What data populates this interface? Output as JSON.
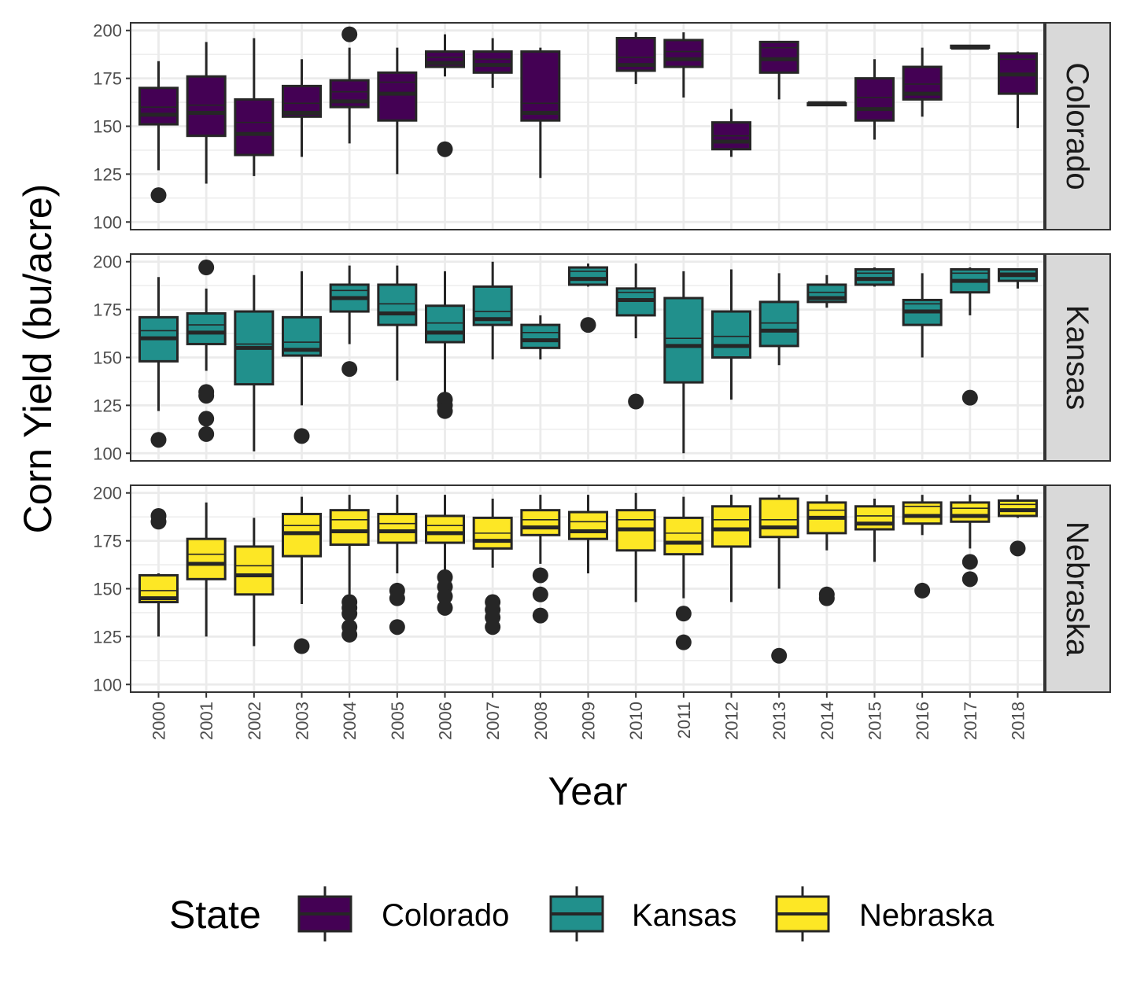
{
  "chart_data": {
    "type": "boxplot",
    "facet_by": "State",
    "xlabel": "Year",
    "ylabel": "Corn Yield (bu/acre)",
    "years": [
      "2000",
      "2001",
      "2002",
      "2003",
      "2004",
      "2005",
      "2006",
      "2007",
      "2008",
      "2009",
      "2010",
      "2011",
      "2012",
      "2013",
      "2014",
      "2015",
      "2016",
      "2017",
      "2018"
    ],
    "y_ticks": [
      100,
      125,
      150,
      175,
      200
    ],
    "ylim": [
      96,
      204
    ],
    "legend": {
      "title": "State",
      "position": "bottom"
    },
    "grid": true,
    "facets": [
      {
        "name": "Colorado",
        "color": "#440154",
        "boxes": [
          {
            "year": "2000",
            "whisker_low": 127,
            "q1": 151,
            "median": 156,
            "q3": 170,
            "whisker_high": 184,
            "outliers": [
              114
            ],
            "inner_line": 160
          },
          {
            "year": "2001",
            "whisker_low": 120,
            "q1": 145,
            "median": 157,
            "q3": 176,
            "whisker_high": 194,
            "outliers": [],
            "inner_line": 161
          },
          {
            "year": "2002",
            "whisker_low": 124,
            "q1": 135,
            "median": 146,
            "q3": 164,
            "whisker_high": 196,
            "outliers": [],
            "inner_line": 152
          },
          {
            "year": "2003",
            "whisker_low": 134,
            "q1": 155,
            "median": 157,
            "q3": 171,
            "whisker_high": 185,
            "outliers": [],
            "inner_line": 162
          },
          {
            "year": "2004",
            "whisker_low": 141,
            "q1": 160,
            "median": 163,
            "q3": 174,
            "whisker_high": 191,
            "outliers": [
              198
            ],
            "inner_line": 168
          },
          {
            "year": "2005",
            "whisker_low": 125,
            "q1": 153,
            "median": 167,
            "q3": 178,
            "whisker_high": 191,
            "outliers": [],
            "inner_line": 173
          },
          {
            "year": "2006",
            "whisker_low": 176,
            "q1": 181,
            "median": 183,
            "q3": 189,
            "whisker_high": 198,
            "outliers": [
              138
            ],
            "inner_line": 186
          },
          {
            "year": "2007",
            "whisker_low": 170,
            "q1": 178,
            "median": 182,
            "q3": 189,
            "whisker_high": 196,
            "outliers": [],
            "inner_line": 185
          },
          {
            "year": "2008",
            "whisker_low": 123,
            "q1": 153,
            "median": 157,
            "q3": 189,
            "whisker_high": 191,
            "outliers": [],
            "inner_line": 162
          },
          {
            "year": "2010",
            "whisker_low": 172,
            "q1": 179,
            "median": 182,
            "q3": 196,
            "whisker_high": 199,
            "outliers": [],
            "inner_line": 186
          },
          {
            "year": "2011",
            "whisker_low": 165,
            "q1": 181,
            "median": 185,
            "q3": 195,
            "whisker_high": 199,
            "outliers": [],
            "inner_line": 189
          },
          {
            "year": "2012",
            "whisker_low": 134,
            "q1": 138,
            "median": 142,
            "q3": 152,
            "whisker_high": 159,
            "outliers": [],
            "inner_line": 145
          },
          {
            "year": "2013",
            "whisker_low": 164,
            "q1": 178,
            "median": 185,
            "q3": 194,
            "whisker_high": 194,
            "outliers": [],
            "inner_line": 191
          },
          {
            "year": "2014",
            "whisker_low": 161,
            "q1": 161,
            "median": 162,
            "q3": 162,
            "whisker_high": 162,
            "outliers": [],
            "inner_line": null
          },
          {
            "year": "2015",
            "whisker_low": 143,
            "q1": 153,
            "median": 159,
            "q3": 175,
            "whisker_high": 185,
            "outliers": [],
            "inner_line": 165
          },
          {
            "year": "2016",
            "whisker_low": 155,
            "q1": 164,
            "median": 167,
            "q3": 181,
            "whisker_high": 191,
            "outliers": [],
            "inner_line": 172
          },
          {
            "year": "2017",
            "whisker_low": 191,
            "q1": 191,
            "median": 191,
            "q3": 192,
            "whisker_high": 192,
            "outliers": [],
            "inner_line": null
          },
          {
            "year": "2018",
            "whisker_low": 149,
            "q1": 167,
            "median": 177,
            "q3": 188,
            "whisker_high": 189,
            "outliers": [],
            "inner_line": 185
          }
        ]
      },
      {
        "name": "Kansas",
        "color": "#21908C",
        "boxes": [
          {
            "year": "2000",
            "whisker_low": 122,
            "q1": 148,
            "median": 160,
            "q3": 171,
            "whisker_high": 192,
            "outliers": [
              107
            ],
            "inner_line": 164
          },
          {
            "year": "2001",
            "whisker_low": 143,
            "q1": 157,
            "median": 163,
            "q3": 173,
            "whisker_high": 186,
            "outliers": [
              197,
              132,
              130,
              118,
              110
            ],
            "inner_line": 167
          },
          {
            "year": "2002",
            "whisker_low": 101,
            "q1": 136,
            "median": 155,
            "q3": 174,
            "whisker_high": 193,
            "outliers": [],
            "inner_line": 157
          },
          {
            "year": "2003",
            "whisker_low": 125,
            "q1": 151,
            "median": 154,
            "q3": 171,
            "whisker_high": 195,
            "outliers": [
              109
            ],
            "inner_line": 158
          },
          {
            "year": "2004",
            "whisker_low": 157,
            "q1": 174,
            "median": 181,
            "q3": 188,
            "whisker_high": 198,
            "outliers": [
              144
            ],
            "inner_line": 185
          },
          {
            "year": "2005",
            "whisker_low": 138,
            "q1": 167,
            "median": 173,
            "q3": 188,
            "whisker_high": 198,
            "outliers": [],
            "inner_line": 178
          },
          {
            "year": "2006",
            "whisker_low": 126,
            "q1": 158,
            "median": 163,
            "q3": 177,
            "whisker_high": 195,
            "outliers": [
              128,
              125,
              122
            ],
            "inner_line": 168
          },
          {
            "year": "2007",
            "whisker_low": 149,
            "q1": 167,
            "median": 170,
            "q3": 187,
            "whisker_high": 200,
            "outliers": [],
            "inner_line": 174
          },
          {
            "year": "2008",
            "whisker_low": 149,
            "q1": 155,
            "median": 159,
            "q3": 167,
            "whisker_high": 172,
            "outliers": [],
            "inner_line": 163
          },
          {
            "year": "2009",
            "whisker_low": 187,
            "q1": 188,
            "median": 191,
            "q3": 197,
            "whisker_high": 199,
            "outliers": [
              167
            ],
            "inner_line": 195
          },
          {
            "year": "2010",
            "whisker_low": 160,
            "q1": 172,
            "median": 180,
            "q3": 186,
            "whisker_high": 199,
            "outliers": [
              127
            ],
            "inner_line": 184
          },
          {
            "year": "2011",
            "whisker_low": 100,
            "q1": 137,
            "median": 156,
            "q3": 181,
            "whisker_high": 195,
            "outliers": [],
            "inner_line": 160
          },
          {
            "year": "2012",
            "whisker_low": 128,
            "q1": 150,
            "median": 156,
            "q3": 174,
            "whisker_high": 196,
            "outliers": [],
            "inner_line": 161
          },
          {
            "year": "2013",
            "whisker_low": 146,
            "q1": 156,
            "median": 164,
            "q3": 179,
            "whisker_high": 194,
            "outliers": [],
            "inner_line": 168
          },
          {
            "year": "2014",
            "whisker_low": 176,
            "q1": 179,
            "median": 181,
            "q3": 188,
            "whisker_high": 193,
            "outliers": [],
            "inner_line": 184
          },
          {
            "year": "2015",
            "whisker_low": 187,
            "q1": 188,
            "median": 191,
            "q3": 196,
            "whisker_high": 197,
            "outliers": [],
            "inner_line": 194
          },
          {
            "year": "2016",
            "whisker_low": 150,
            "q1": 167,
            "median": 174,
            "q3": 180,
            "whisker_high": 194,
            "outliers": [],
            "inner_line": 178
          },
          {
            "year": "2017",
            "whisker_low": 172,
            "q1": 184,
            "median": 190,
            "q3": 196,
            "whisker_high": 197,
            "outliers": [
              129
            ],
            "inner_line": 194
          },
          {
            "year": "2018",
            "whisker_low": 186,
            "q1": 190,
            "median": 193,
            "q3": 196,
            "whisker_high": 196,
            "outliers": [],
            "inner_line": 194
          }
        ]
      },
      {
        "name": "Nebraska",
        "color": "#FDE725",
        "boxes": [
          {
            "year": "2000",
            "whisker_low": 125,
            "q1": 143,
            "median": 145,
            "q3": 157,
            "whisker_high": 158,
            "outliers": [
              188,
              185
            ],
            "inner_line": 149
          },
          {
            "year": "2001",
            "whisker_low": 125,
            "q1": 155,
            "median": 163,
            "q3": 176,
            "whisker_high": 195,
            "outliers": [],
            "inner_line": 168
          },
          {
            "year": "2002",
            "whisker_low": 120,
            "q1": 147,
            "median": 157,
            "q3": 172,
            "whisker_high": 187,
            "outliers": [],
            "inner_line": 162
          },
          {
            "year": "2003",
            "whisker_low": 142,
            "q1": 167,
            "median": 179,
            "q3": 189,
            "whisker_high": 198,
            "outliers": [
              120
            ],
            "inner_line": 183
          },
          {
            "year": "2004",
            "whisker_low": 147,
            "q1": 173,
            "median": 180,
            "q3": 191,
            "whisker_high": 199,
            "outliers": [
              143,
              140,
              137,
              130,
              126
            ],
            "inner_line": 186
          },
          {
            "year": "2005",
            "whisker_low": 158,
            "q1": 174,
            "median": 180,
            "q3": 189,
            "whisker_high": 199,
            "outliers": [
              149,
              145,
              130
            ],
            "inner_line": 184
          },
          {
            "year": "2006",
            "whisker_low": 159,
            "q1": 174,
            "median": 179,
            "q3": 188,
            "whisker_high": 199,
            "outliers": [
              156,
              151,
              146,
              140
            ],
            "inner_line": 183
          },
          {
            "year": "2007",
            "whisker_low": 161,
            "q1": 171,
            "median": 175,
            "q3": 187,
            "whisker_high": 197,
            "outliers": [
              143,
              139,
              135,
              130
            ],
            "inner_line": 179
          },
          {
            "year": "2008",
            "whisker_low": 163,
            "q1": 178,
            "median": 182,
            "q3": 191,
            "whisker_high": 199,
            "outliers": [
              157,
              147,
              136
            ],
            "inner_line": 186
          },
          {
            "year": "2009",
            "whisker_low": 158,
            "q1": 176,
            "median": 180,
            "q3": 190,
            "whisker_high": 199,
            "outliers": [],
            "inner_line": 185
          },
          {
            "year": "2010",
            "whisker_low": 143,
            "q1": 170,
            "median": 181,
            "q3": 191,
            "whisker_high": 200,
            "outliers": [],
            "inner_line": 186
          },
          {
            "year": "2011",
            "whisker_low": 145,
            "q1": 168,
            "median": 174,
            "q3": 187,
            "whisker_high": 198,
            "outliers": [
              137,
              122
            ],
            "inner_line": 179
          },
          {
            "year": "2012",
            "whisker_low": 143,
            "q1": 172,
            "median": 181,
            "q3": 193,
            "whisker_high": 199,
            "outliers": [],
            "inner_line": 186
          },
          {
            "year": "2013",
            "whisker_low": 150,
            "q1": 177,
            "median": 182,
            "q3": 197,
            "whisker_high": 199,
            "outliers": [
              115
            ],
            "inner_line": 186
          },
          {
            "year": "2014",
            "whisker_low": 170,
            "q1": 179,
            "median": 187,
            "q3": 195,
            "whisker_high": 199,
            "outliers": [
              147,
              145
            ],
            "inner_line": 191
          },
          {
            "year": "2015",
            "whisker_low": 164,
            "q1": 181,
            "median": 184,
            "q3": 193,
            "whisker_high": 197,
            "outliers": [],
            "inner_line": 188
          },
          {
            "year": "2016",
            "whisker_low": 178,
            "q1": 184,
            "median": 188,
            "q3": 195,
            "whisker_high": 199,
            "outliers": [
              149
            ],
            "inner_line": 193
          },
          {
            "year": "2017",
            "whisker_low": 171,
            "q1": 185,
            "median": 188,
            "q3": 195,
            "whisker_high": 199,
            "outliers": [
              164,
              155
            ],
            "inner_line": 192
          },
          {
            "year": "2018",
            "whisker_low": 187,
            "q1": 188,
            "median": 191,
            "q3": 196,
            "whisker_high": 199,
            "outliers": [
              171
            ],
            "inner_line": 194
          }
        ]
      }
    ]
  }
}
